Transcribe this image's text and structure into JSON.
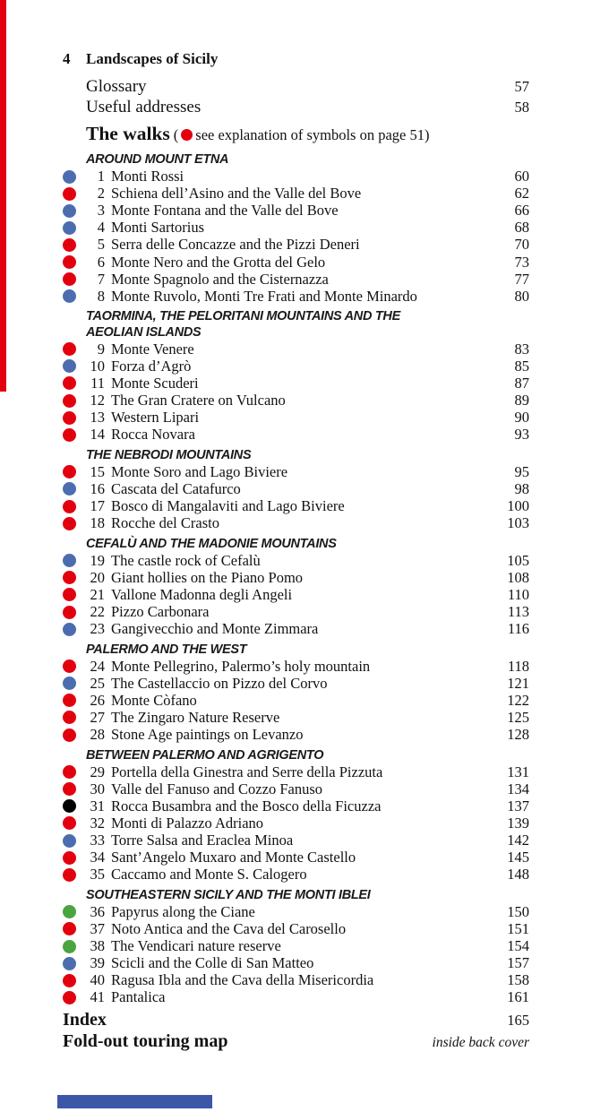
{
  "page_header": {
    "page_number": "4",
    "title": "Landscapes of Sicily"
  },
  "front_matter": [
    {
      "label": "Glossary",
      "page": "57"
    },
    {
      "label": "Useful addresses",
      "page": "58"
    }
  ],
  "walks_heading": {
    "title": "The walks",
    "note_open": "(",
    "symbol": "red-dot",
    "note_text": "see explanation of symbols on page 51)"
  },
  "legend_colors": {
    "red": "#e2000f",
    "blue": "#4b6db0",
    "green": "#4ba440",
    "black": "#000000"
  },
  "decor": {
    "left_bar_color": "#e2000f",
    "bottom_bar_color": "#3c57a8"
  },
  "sections": [
    {
      "heading_lines": [
        "AROUND MOUNT ETNA"
      ],
      "walks": [
        {
          "num": "1",
          "title": "Monti Rossi",
          "page": "60",
          "dot": "blue"
        },
        {
          "num": "2",
          "title": "Schiena dell’Asino and the Valle del Bove",
          "page": "62",
          "dot": "red"
        },
        {
          "num": "3",
          "title": "Monte Fontana and the Valle del Bove",
          "page": "66",
          "dot": "blue"
        },
        {
          "num": "4",
          "title": "Monti Sartorius",
          "page": "68",
          "dot": "blue"
        },
        {
          "num": "5",
          "title": "Serra delle Concazze and the Pizzi Deneri",
          "page": "70",
          "dot": "red"
        },
        {
          "num": "6",
          "title": "Monte Nero and the Grotta del Gelo",
          "page": "73",
          "dot": "red"
        },
        {
          "num": "7",
          "title": "Monte Spagnolo and the Cisternazza",
          "page": "77",
          "dot": "red"
        },
        {
          "num": "8",
          "title": "Monte Ruvolo, Monti Tre Frati and Monte Minardo",
          "page": "80",
          "dot": "blue"
        }
      ]
    },
    {
      "heading_lines": [
        "TAORMINA, THE PELORITANI MOUNTAINS AND THE",
        "AEOLIAN ISLANDS"
      ],
      "walks": [
        {
          "num": "9",
          "title": "Monte Venere",
          "page": "83",
          "dot": "red"
        },
        {
          "num": "10",
          "title": "Forza d’Agrò",
          "page": "85",
          "dot": "blue"
        },
        {
          "num": "11",
          "title": "Monte Scuderi",
          "page": "87",
          "dot": "red"
        },
        {
          "num": "12",
          "title": "The Gran Cratere on Vulcano",
          "page": "89",
          "dot": "red"
        },
        {
          "num": "13",
          "title": "Western Lipari",
          "page": "90",
          "dot": "red"
        },
        {
          "num": "14",
          "title": "Rocca Novara",
          "page": "93",
          "dot": "red"
        }
      ]
    },
    {
      "heading_lines": [
        "THE NEBRODI MOUNTAINS"
      ],
      "walks": [
        {
          "num": "15",
          "title": "Monte Soro and Lago Biviere",
          "page": "95",
          "dot": "red"
        },
        {
          "num": "16",
          "title": "Cascata del Catafurco",
          "page": "98",
          "dot": "blue"
        },
        {
          "num": "17",
          "title": "Bosco di Mangalaviti and Lago Biviere",
          "page": "100",
          "dot": "red"
        },
        {
          "num": "18",
          "title": "Rocche del Crasto",
          "page": "103",
          "dot": "red"
        }
      ]
    },
    {
      "heading_lines": [
        "CEFALÙ AND THE MADONIE MOUNTAINS"
      ],
      "walks": [
        {
          "num": "19",
          "title": "The castle rock of Cefalù",
          "page": "105",
          "dot": "blue"
        },
        {
          "num": "20",
          "title": "Giant hollies on the Piano Pomo",
          "page": "108",
          "dot": "red"
        },
        {
          "num": "21",
          "title": "Vallone Madonna degli Angeli",
          "page": "110",
          "dot": "red"
        },
        {
          "num": "22",
          "title": "Pizzo Carbonara",
          "page": "113",
          "dot": "red"
        },
        {
          "num": "23",
          "title": "Gangivecchio and Monte Zimmara",
          "page": "116",
          "dot": "blue"
        }
      ]
    },
    {
      "heading_lines": [
        "PALERMO AND THE WEST"
      ],
      "walks": [
        {
          "num": "24",
          "title": "Monte Pellegrino, Palermo’s holy mountain",
          "page": "118",
          "dot": "red"
        },
        {
          "num": "25",
          "title": "The Castellaccio on Pizzo del Corvo",
          "page": "121",
          "dot": "blue"
        },
        {
          "num": "26",
          "title": "Monte Còfano",
          "page": "122",
          "dot": "red"
        },
        {
          "num": "27",
          "title": "The Zingaro Nature Reserve",
          "page": "125",
          "dot": "red"
        },
        {
          "num": "28",
          "title": "Stone Age paintings on Levanzo",
          "page": "128",
          "dot": "red"
        }
      ]
    },
    {
      "heading_lines": [
        "BETWEEN PALERMO AND AGRIGENTO"
      ],
      "walks": [
        {
          "num": "29",
          "title": "Portella della Ginestra and Serre della Pizzuta",
          "page": "131",
          "dot": "red"
        },
        {
          "num": "30",
          "title": "Valle del Fanuso and Cozzo Fanuso",
          "page": "134",
          "dot": "red"
        },
        {
          "num": "31",
          "title": "Rocca Busambra and the Bosco della Ficuzza",
          "page": "137",
          "dot": "black"
        },
        {
          "num": "32",
          "title": "Monti di Palazzo Adriano",
          "page": "139",
          "dot": "red"
        },
        {
          "num": "33",
          "title": "Torre Salsa and Eraclea Minoa",
          "page": "142",
          "dot": "blue"
        },
        {
          "num": "34",
          "title": "Sant’Angelo Muxaro and Monte Castello",
          "page": "145",
          "dot": "red"
        },
        {
          "num": "35",
          "title": "Caccamo and Monte S. Calogero",
          "page": "148",
          "dot": "red"
        }
      ]
    },
    {
      "heading_lines": [
        "SOUTHEASTERN SICILY AND THE MONTI IBLEI"
      ],
      "walks": [
        {
          "num": "36",
          "title": "Papyrus along the Ciane",
          "page": "150",
          "dot": "green"
        },
        {
          "num": "37",
          "title": "Noto Antica and the Cava del Carosello",
          "page": "151",
          "dot": "red"
        },
        {
          "num": "38",
          "title": "The Vendicari nature reserve",
          "page": "154",
          "dot": "green"
        },
        {
          "num": "39",
          "title": "Scicli and the Colle di San Matteo",
          "page": "157",
          "dot": "blue"
        },
        {
          "num": "40",
          "title": "Ragusa Ibla and the Cava della Misericordia",
          "page": "158",
          "dot": "red"
        },
        {
          "num": "41",
          "title": "Pantalica",
          "page": "161",
          "dot": "red"
        }
      ]
    }
  ],
  "back_matter": [
    {
      "label": "Index",
      "page": "165",
      "page_style": "normal"
    },
    {
      "label": "Fold-out touring map",
      "page": "inside back cover",
      "page_style": "italic"
    }
  ]
}
